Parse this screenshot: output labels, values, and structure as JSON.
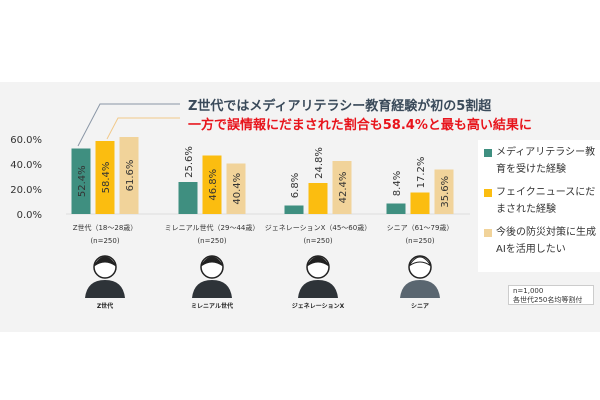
{
  "chart_data": {
    "type": "bar",
    "title": "Z世代ではメディアリテラシー教育経験が初の5割超",
    "subtitle": "一方で誤情報にだまされた割合も58.4%と最も高い結果に",
    "categories": [
      "Z世代（18～28歳）",
      "ミレニアル世代（29～44歳）",
      "ジェネレーションX（45～60歳）",
      "シニア（61～79歳）"
    ],
    "category_n": [
      "(n=250)",
      "(n=250)",
      "(n=250)",
      "(n=250)"
    ],
    "person_labels": [
      "Z世代",
      "ミレニアル世代",
      "ジェネレーションX",
      "シニア"
    ],
    "series": [
      {
        "name": "メディアリテラシー教育を受けた経験",
        "values": [
          52.4,
          25.6,
          6.8,
          8.4
        ],
        "labels": [
          "52.4%",
          "25.6%",
          "6.8%",
          "8.4%"
        ],
        "color": "#3f8f80"
      },
      {
        "name": "フェイクニュースにだまされた経験",
        "values": [
          58.4,
          46.8,
          24.8,
          17.2
        ],
        "labels": [
          "58.4%",
          "46.8%",
          "24.8%",
          "17.2%"
        ],
        "color": "#fbbd10"
      },
      {
        "name": "今後の防災対策に生成AIを活用したい",
        "values": [
          61.6,
          40.4,
          42.4,
          35.6
        ],
        "labels": [
          "61.6%",
          "40.4%",
          "42.4%",
          "35.6%"
        ],
        "color": "#f1d39a"
      }
    ],
    "yticks": [
      "0.0%",
      "20.0%",
      "40.0%",
      "60.0%"
    ],
    "ylim": [
      0,
      70
    ],
    "grid": false,
    "legend": "right"
  },
  "note": {
    "line1": "n=1,000",
    "line2": "各世代250名均等割付"
  }
}
